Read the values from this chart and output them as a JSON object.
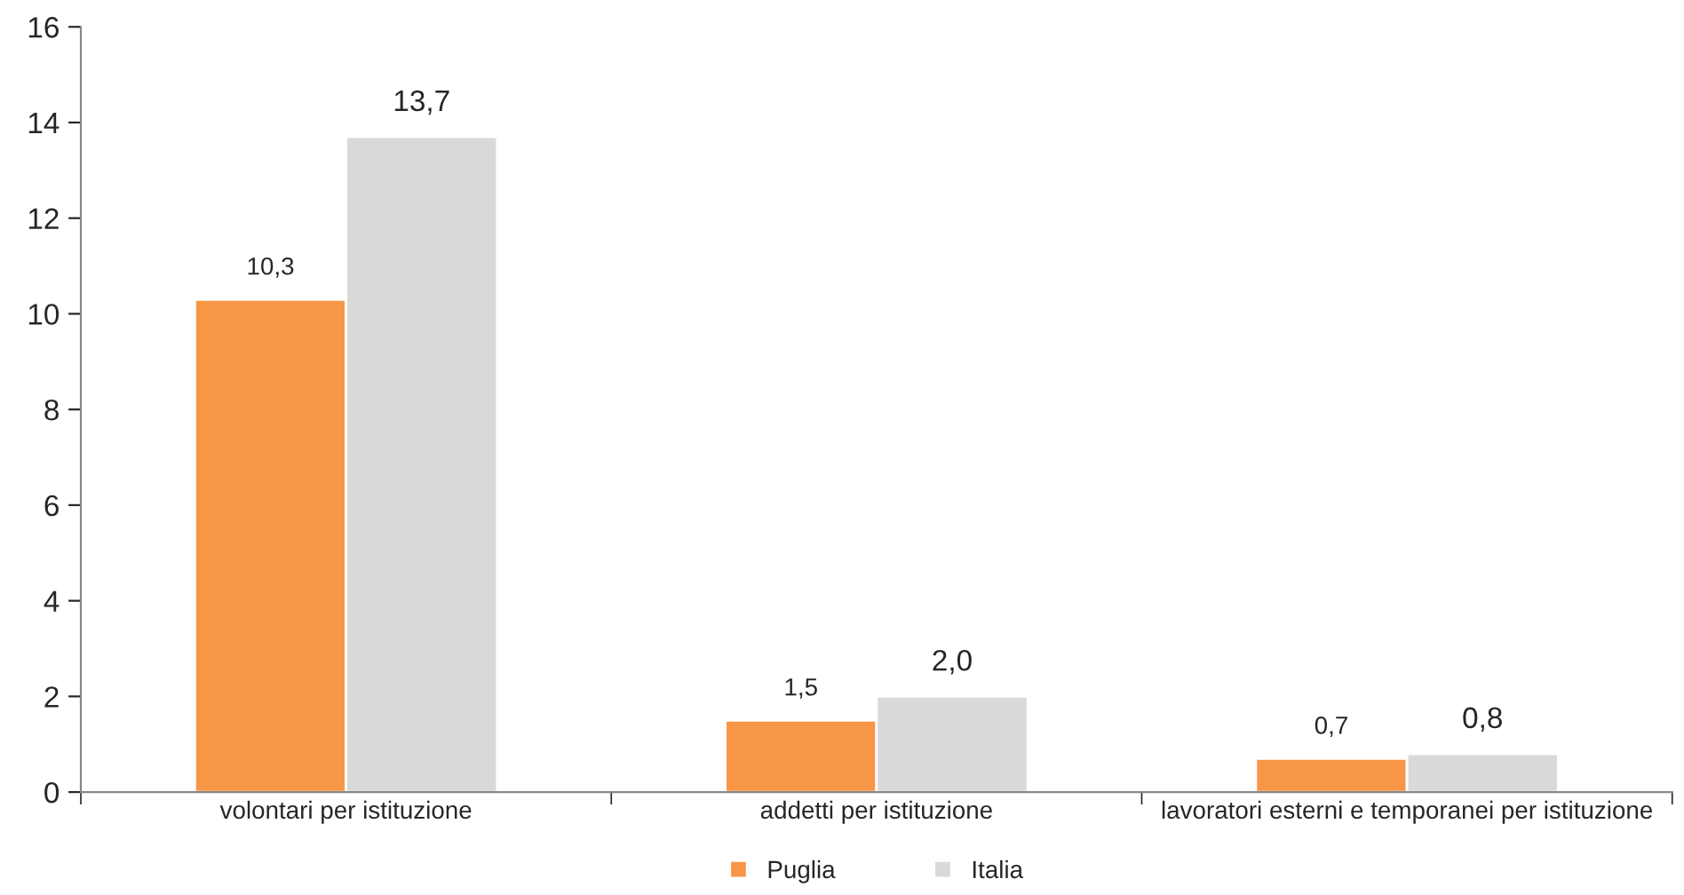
{
  "chart_data": {
    "type": "bar",
    "categories": [
      "volontari per istituzione",
      "addetti per istituzione",
      "lavoratori esterni e temporanei per istituzione"
    ],
    "series": [
      {
        "name": "Puglia",
        "color": "#f79646",
        "values": [
          10.3,
          1.5,
          0.7
        ],
        "value_labels": [
          "10,3",
          "1,5",
          "0,7"
        ]
      },
      {
        "name": "Italia",
        "color": "#d9d9d9",
        "values": [
          13.7,
          2.0,
          0.8
        ],
        "value_labels": [
          "13,7",
          "2,0",
          "0,8"
        ]
      }
    ],
    "ylim": [
      0,
      16
    ],
    "yticks": [
      0,
      2,
      4,
      6,
      8,
      10,
      12,
      14,
      16
    ],
    "grid": false,
    "legend": "bottom"
  }
}
